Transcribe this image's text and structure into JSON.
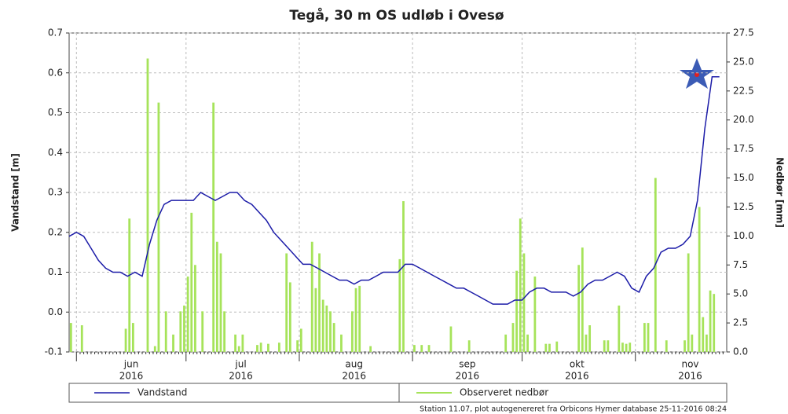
{
  "chart_data": {
    "type": "line-bar",
    "title": "Tegå, 30 m OS udløb i Ovesø",
    "ylabel": "Vandstand [m]",
    "y2label": "Nedbør [mm]",
    "footer": "Station 11.07, plot autogenereret fra Orbicons Hymer database 25-11-2016 08:24",
    "xticks": [
      {
        "month": "jun",
        "year": "2016"
      },
      {
        "month": "jul",
        "year": "2016"
      },
      {
        "month": "aug",
        "year": "2016"
      },
      {
        "month": "sep",
        "year": "2016"
      },
      {
        "month": "okt",
        "year": "2016"
      },
      {
        "month": "nov",
        "year": "2016"
      }
    ],
    "ylim": [
      -0.1,
      0.7
    ],
    "yticks": [
      -0.1,
      {
        "value": 0,
        "label": "0.0"
      },
      0.1,
      0.2,
      0.3,
      0.4,
      0.5,
      0.6,
      0.7
    ],
    "y2lim": [
      0,
      27.5
    ],
    "y2ticks": [
      {
        "value": 0,
        "label": "0.0"
      },
      2.5,
      {
        "value": 5,
        "label": "5.0"
      },
      7.5,
      {
        "value": 10,
        "label": "10.0"
      },
      12.5,
      {
        "value": 15,
        "label": "15.0"
      },
      17.5,
      {
        "value": 20,
        "label": "20.0"
      },
      22.5,
      {
        "value": 25,
        "label": "25.0"
      },
      27.5
    ],
    "grid": true,
    "series": [
      {
        "name": "Vandstand",
        "kind": "line",
        "color": "#1c1ca8",
        "values": [
          0.19,
          0.2,
          0.19,
          0.16,
          0.13,
          0.11,
          0.1,
          0.1,
          0.09,
          0.1,
          0.09,
          0.17,
          0.23,
          0.27,
          0.28,
          0.28,
          0.28,
          0.28,
          0.3,
          0.29,
          0.28,
          0.29,
          0.3,
          0.3,
          0.28,
          0.27,
          0.25,
          0.23,
          0.2,
          0.18,
          0.16,
          0.14,
          0.12,
          0.12,
          0.11,
          0.1,
          0.09,
          0.08,
          0.08,
          0.07,
          0.08,
          0.08,
          0.09,
          0.1,
          0.1,
          0.1,
          0.12,
          0.12,
          0.11,
          0.1,
          0.09,
          0.08,
          0.07,
          0.06,
          0.06,
          0.05,
          0.04,
          0.03,
          0.02,
          0.02,
          0.02,
          0.03,
          0.03,
          0.05,
          0.06,
          0.06,
          0.05,
          0.05,
          0.05,
          0.04,
          0.05,
          0.07,
          0.08,
          0.08,
          0.09,
          0.1,
          0.09,
          0.06,
          0.05,
          0.09,
          0.11,
          0.15,
          0.16,
          0.16,
          0.17,
          0.19,
          0.28,
          0.46,
          0.59,
          0.59
        ]
      },
      {
        "name": "Observeret nedbør",
        "kind": "bar",
        "axis": "y2",
        "color": "#a6e35a",
        "values": [
          2.5,
          0,
          0,
          2.3,
          0,
          0,
          0,
          0,
          0,
          0,
          0,
          0,
          0,
          0,
          0,
          2,
          11.5,
          2.5,
          0,
          0,
          0,
          25.3,
          0,
          0.5,
          21.5,
          0,
          3.5,
          0,
          1.5,
          0,
          3.5,
          4,
          6.5,
          12,
          7.5,
          0,
          3.5,
          0,
          0,
          21.5,
          9.5,
          8.5,
          3.5,
          0,
          0,
          1.5,
          0.5,
          1.5,
          0,
          0,
          0,
          0.6,
          0.8,
          0,
          0.7,
          0,
          0,
          0.8,
          0,
          8.5,
          6,
          0,
          1,
          2,
          0,
          0,
          9.5,
          5.5,
          8.5,
          4.5,
          4,
          3.5,
          2.5,
          0,
          1.5,
          0,
          0,
          3.5,
          5.5,
          5.7,
          0,
          0,
          0.5,
          0,
          0,
          0,
          0,
          0,
          0,
          0,
          8,
          13,
          0,
          0,
          0.6,
          0,
          0.6,
          0,
          0.6,
          0,
          0,
          0,
          0,
          0,
          2.2,
          0,
          0,
          0,
          0,
          1,
          0,
          0,
          0,
          0,
          0,
          0,
          0,
          0,
          0,
          1.5,
          0,
          2.5,
          7,
          11.5,
          8.5,
          1.5,
          0,
          6.5,
          0,
          0,
          0.7,
          0.7,
          0,
          0.9,
          0,
          0,
          0,
          0,
          0,
          7.5,
          9,
          1.5,
          2.3,
          0,
          0,
          0,
          1,
          1,
          0,
          0,
          4,
          0.8,
          0.7,
          0.8,
          0,
          0,
          0,
          2.5,
          2.5,
          0,
          15,
          0,
          0,
          1,
          0,
          0,
          0,
          0,
          1,
          8.5,
          1.5,
          0,
          12.5,
          3,
          1.5,
          5.3,
          5,
          0,
          0,
          0
        ]
      }
    ]
  }
}
